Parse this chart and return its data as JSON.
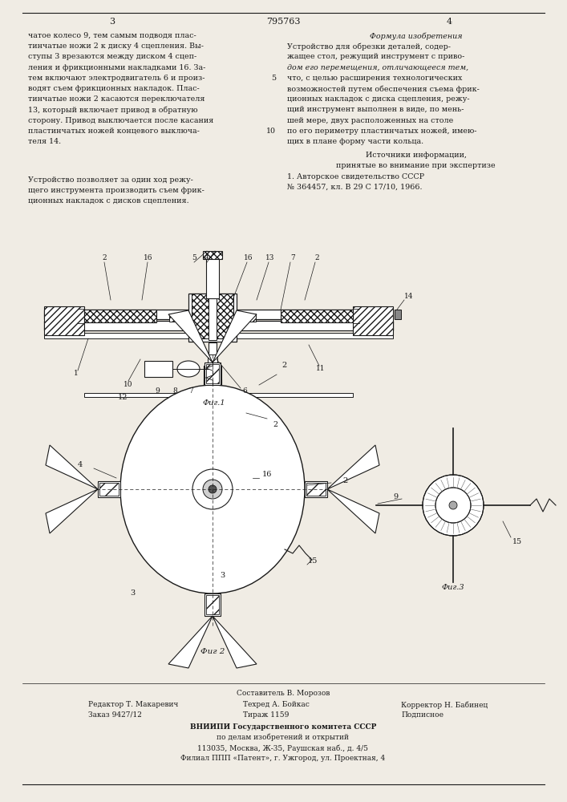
{
  "patent_number": "795763",
  "page_left": "3",
  "page_right": "4",
  "background_color": "#f0ece4",
  "text_color": "#1a1a1a",
  "left_column_text": [
    "чатое колесо 9, тем самым подводя плас-",
    "тинчатые ножи 2 к диску 4 сцепления. Вы-",
    "ступы 3 врезаются между диском 4 сцеп-",
    "ления и фрикционными накладками 16. За-",
    "тем включают электродвигатель 6 и произ-",
    "водят съем фрикционных накладок. Плас-",
    "тинчатые ножи 2 касаются переключателя",
    "13, который включает привод в обратную",
    "сторону. Привод выключается после касания",
    "пластинчатых ножей концевого выключа-",
    "теля 14."
  ],
  "left_bottom_text": [
    "Устройство позволяет за один ход режу-",
    "щего инструмента производить съем фрик-",
    "ционных накладок с дисков сцепления."
  ],
  "right_column_title": "Формула изобретения",
  "right_column_text": [
    "Устройство для обрезки деталей, содер-",
    "жащее стол, режущий инструмент с приво-",
    "дом его перемещения, отличающееся тем,",
    "что, с целью расширения технологических",
    "возможностей путем обеспечения съема фрик-",
    "ционных накладок с диска сцепления, режу-",
    "щий инструмент выполнен в виде, по мень-",
    "шей мере, двух расположенных на столе",
    "по его периметру пластинчатых ножей, имею-",
    "щих в плане форму части кольца."
  ],
  "sources_title": "Источники информации,",
  "sources_text": [
    "принятые во внимание при экспертизе",
    "1. Авторское свидетельство СССР",
    "№ 364457, кл. В 29 С 17/10, 1966."
  ],
  "fig1_label": "Фиг.1",
  "fig2_label": "Фиг 2",
  "fig3_label": "Фиг.3",
  "footer_line0": "Составитель В. Морозов",
  "footer_col1_line1": "Редактор Т. Макаревич",
  "footer_col2_line1": "Техред А. Бойкас",
  "footer_col3_line1": "Корректор Н. Бабинец",
  "footer_col1_line2": "Заказ 9427/12",
  "footer_col2_line2": "Тираж 1159",
  "footer_col3_line2": "Подписное",
  "footer_vniipи": "ВНИИПИ Государственного комитета СССР",
  "footer_po": "по делам изобретений и открытий",
  "footer_addr1": "113035, Москва, Ж-35, Раушская наб., д. 4/5",
  "footer_addr2": "Филиал ППП «Патент», г. Ужгород, ул. Проектная, 4",
  "line_number_5": "5",
  "line_number_10": "10"
}
